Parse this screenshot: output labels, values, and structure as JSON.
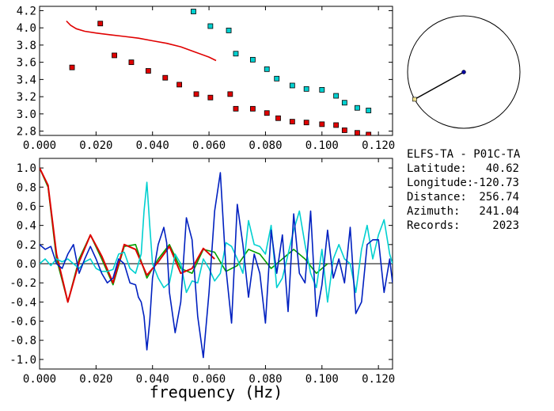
{
  "station": {
    "title": "ELFS-TA - P01C-TA",
    "fields": [
      {
        "label": "Latitude:",
        "value": "40.62"
      },
      {
        "label": "Longitude:",
        "value": "-120.73"
      },
      {
        "label": "Distance:",
        "value": "256.74"
      },
      {
        "label": "Azimuth:",
        "value": "241.04"
      },
      {
        "label": "Records:",
        "value": "2023"
      }
    ]
  },
  "azimuth_dial": {
    "azimuth_deg": 241.04
  },
  "chart_data": [
    {
      "type": "scatter",
      "xlim": [
        0.0,
        0.125
      ],
      "ylim": [
        2.75,
        4.25
      ],
      "xticks": [
        "0.000",
        "0.020",
        "0.040",
        "0.060",
        "0.080",
        "0.100",
        "0.120"
      ],
      "yticks": [
        "2.8",
        "3.0",
        "3.2",
        "3.4",
        "3.6",
        "3.8",
        "4.0",
        "4.2"
      ],
      "series": [
        {
          "color": "#e00000",
          "marker": "square",
          "x": [
            0.0115,
            0.0215,
            0.0265,
            0.0325,
            0.0385,
            0.0445,
            0.0495,
            0.0555,
            0.0605,
            0.0675,
            0.0695,
            0.0755,
            0.0805,
            0.0845,
            0.0895,
            0.0945,
            0.1,
            0.105,
            0.108,
            0.1125,
            0.1165
          ],
          "y": [
            3.54,
            4.05,
            3.68,
            3.6,
            3.5,
            3.42,
            3.34,
            3.23,
            3.19,
            3.23,
            3.06,
            3.06,
            3.01,
            2.95,
            2.91,
            2.9,
            2.88,
            2.87,
            2.81,
            2.78,
            2.76
          ]
        },
        {
          "color": "#00d0d0",
          "marker": "square",
          "x": [
            0.0545,
            0.0605,
            0.067,
            0.0695,
            0.0755,
            0.0805,
            0.084,
            0.0895,
            0.0945,
            0.1,
            0.105,
            0.108,
            0.1125,
            0.1165
          ],
          "y": [
            4.19,
            4.02,
            3.97,
            3.7,
            3.63,
            3.52,
            3.41,
            3.33,
            3.29,
            3.28,
            3.21,
            3.13,
            3.07,
            3.04
          ]
        },
        {
          "color": "#e00000",
          "marker": "line",
          "x": [
            0.0095,
            0.011,
            0.013,
            0.016,
            0.02,
            0.025,
            0.03,
            0.035,
            0.04,
            0.045,
            0.05,
            0.055,
            0.06,
            0.0625
          ],
          "y": [
            4.08,
            4.03,
            3.99,
            3.96,
            3.94,
            3.92,
            3.9,
            3.88,
            3.85,
            3.82,
            3.78,
            3.72,
            3.66,
            3.62
          ]
        }
      ]
    },
    {
      "type": "line",
      "xlim": [
        0.0,
        0.125
      ],
      "ylim": [
        -1.1,
        1.1
      ],
      "xticks": [
        "0.000",
        "0.020",
        "0.040",
        "0.060",
        "0.080",
        "0.100",
        "0.120"
      ],
      "yticks": [
        "1.0",
        "0.8",
        "0.6",
        "0.4",
        "0.2",
        "0.0",
        "-0.2",
        "-0.4",
        "-0.6",
        "-0.8",
        "-1.0"
      ],
      "xlabel": "frequency (Hz)",
      "series": [
        {
          "color": "#000000",
          "x": [
            0.0,
            0.125
          ],
          "y": [
            0.0,
            0.0
          ]
        },
        {
          "color": "#00a000",
          "x": [
            0.0,
            0.003,
            0.006,
            0.01,
            0.014,
            0.018,
            0.022,
            0.026,
            0.03,
            0.034,
            0.038,
            0.042,
            0.046,
            0.05,
            0.054,
            0.058,
            0.062,
            0.066,
            0.07,
            0.074,
            0.078,
            0.082,
            0.086,
            0.09,
            0.094,
            0.098,
            0.102
          ],
          "y": [
            1.0,
            0.8,
            0.05,
            -0.4,
            0.05,
            0.3,
            0.05,
            -0.22,
            0.18,
            0.2,
            -0.15,
            0.05,
            0.2,
            -0.05,
            -0.1,
            0.15,
            0.12,
            -0.08,
            -0.02,
            0.15,
            0.1,
            -0.05,
            0.05,
            0.15,
            0.05,
            -0.1,
            0.0
          ]
        },
        {
          "color": "#e00000",
          "x": [
            0.0,
            0.003,
            0.006,
            0.01,
            0.014,
            0.018,
            0.022,
            0.026,
            0.03,
            0.034,
            0.038,
            0.042,
            0.046,
            0.05,
            0.054,
            0.058,
            0.062
          ],
          "y": [
            1.0,
            0.82,
            0.1,
            -0.4,
            0.02,
            0.3,
            0.08,
            -0.2,
            0.2,
            0.15,
            -0.12,
            0.02,
            0.18,
            -0.1,
            -0.05,
            0.16,
            0.05
          ]
        },
        {
          "color": "#00d0d0",
          "x": [
            0.0,
            0.002,
            0.004,
            0.006,
            0.008,
            0.01,
            0.012,
            0.014,
            0.016,
            0.018,
            0.02,
            0.022,
            0.024,
            0.026,
            0.028,
            0.03,
            0.032,
            0.034,
            0.036,
            0.037,
            0.038,
            0.039,
            0.04,
            0.042,
            0.044,
            0.046,
            0.048,
            0.05,
            0.052,
            0.054,
            0.056,
            0.058,
            0.06,
            0.062,
            0.064,
            0.066,
            0.068,
            0.07,
            0.072,
            0.074,
            0.076,
            0.078,
            0.08,
            0.082,
            0.084,
            0.086,
            0.088,
            0.09,
            0.092,
            0.094,
            0.096,
            0.098,
            0.1,
            0.102,
            0.104,
            0.106,
            0.108,
            0.11,
            0.112,
            0.114,
            0.116,
            0.118,
            0.12,
            0.122,
            0.124,
            0.125
          ],
          "y": [
            0.0,
            0.05,
            -0.02,
            0.05,
            0.02,
            0.05,
            0.0,
            -0.05,
            0.02,
            0.05,
            -0.05,
            -0.08,
            -0.08,
            -0.06,
            0.1,
            0.12,
            -0.05,
            -0.1,
            0.1,
            0.55,
            0.85,
            0.4,
            0.0,
            -0.15,
            -0.25,
            -0.2,
            0.1,
            0.0,
            -0.3,
            -0.18,
            -0.2,
            0.05,
            -0.05,
            -0.18,
            -0.1,
            0.22,
            0.18,
            0.05,
            -0.1,
            0.45,
            0.2,
            0.18,
            0.1,
            0.4,
            -0.25,
            -0.15,
            0.1,
            0.35,
            0.55,
            0.2,
            -0.1,
            -0.25,
            0.15,
            -0.4,
            0.05,
            0.2,
            0.05,
            0.0,
            -0.3,
            0.15,
            0.4,
            0.05,
            0.3,
            0.46,
            0.1,
            0.0
          ]
        },
        {
          "color": "#0020c0",
          "x": [
            0.0,
            0.002,
            0.004,
            0.006,
            0.008,
            0.01,
            0.012,
            0.014,
            0.016,
            0.018,
            0.02,
            0.022,
            0.024,
            0.026,
            0.028,
            0.03,
            0.032,
            0.034,
            0.035,
            0.036,
            0.037,
            0.038,
            0.039,
            0.04,
            0.042,
            0.044,
            0.045,
            0.046,
            0.048,
            0.05,
            0.052,
            0.054,
            0.056,
            0.058,
            0.06,
            0.062,
            0.064,
            0.066,
            0.068,
            0.07,
            0.072,
            0.074,
            0.076,
            0.078,
            0.08,
            0.082,
            0.084,
            0.086,
            0.088,
            0.09,
            0.092,
            0.094,
            0.096,
            0.098,
            0.1,
            0.102,
            0.104,
            0.106,
            0.108,
            0.11,
            0.112,
            0.114,
            0.116,
            0.118,
            0.12,
            0.122,
            0.124,
            0.125
          ],
          "y": [
            0.2,
            0.15,
            0.18,
            0.0,
            -0.05,
            0.1,
            0.2,
            -0.1,
            0.05,
            0.18,
            0.05,
            -0.1,
            -0.2,
            -0.15,
            0.05,
            0.0,
            -0.2,
            -0.22,
            -0.35,
            -0.4,
            -0.55,
            -0.9,
            -0.6,
            -0.15,
            0.2,
            0.38,
            0.22,
            -0.3,
            -0.72,
            -0.4,
            0.48,
            0.25,
            -0.55,
            -0.98,
            -0.3,
            0.55,
            0.95,
            -0.05,
            -0.62,
            0.62,
            0.2,
            -0.35,
            0.1,
            -0.1,
            -0.62,
            0.35,
            -0.1,
            0.3,
            -0.5,
            0.52,
            -0.1,
            -0.2,
            0.55,
            -0.55,
            -0.22,
            0.35,
            -0.15,
            0.05,
            -0.2,
            0.38,
            -0.52,
            -0.4,
            0.2,
            0.25,
            0.25,
            -0.3,
            0.05,
            -0.2
          ]
        }
      ]
    }
  ]
}
